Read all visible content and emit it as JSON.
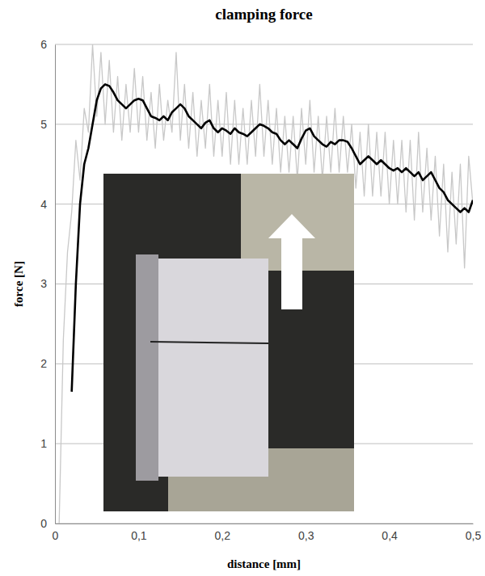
{
  "chart_data": {
    "type": "line",
    "title": "clamping force",
    "x_label": "distance [mm]",
    "y_label": "force [N]",
    "x": [
      0.005,
      0.01,
      0.015,
      0.02,
      0.025,
      0.03,
      0.035,
      0.04,
      0.045,
      0.05,
      0.055,
      0.06,
      0.065,
      0.07,
      0.075,
      0.08,
      0.085,
      0.09,
      0.095,
      0.1,
      0.105,
      0.11,
      0.115,
      0.12,
      0.125,
      0.13,
      0.135,
      0.14,
      0.145,
      0.15,
      0.155,
      0.16,
      0.165,
      0.17,
      0.175,
      0.18,
      0.185,
      0.19,
      0.195,
      0.2,
      0.205,
      0.21,
      0.215,
      0.22,
      0.225,
      0.23,
      0.235,
      0.24,
      0.245,
      0.25,
      0.255,
      0.26,
      0.265,
      0.27,
      0.275,
      0.28,
      0.285,
      0.29,
      0.295,
      0.3,
      0.305,
      0.31,
      0.315,
      0.32,
      0.325,
      0.33,
      0.335,
      0.34,
      0.345,
      0.35,
      0.355,
      0.36,
      0.365,
      0.37,
      0.375,
      0.38,
      0.385,
      0.39,
      0.395,
      0.4,
      0.405,
      0.41,
      0.415,
      0.42,
      0.425,
      0.43,
      0.435,
      0.44,
      0.445,
      0.45,
      0.455,
      0.46,
      0.465,
      0.47,
      0.475,
      0.48,
      0.485,
      0.49,
      0.495,
      0.5
    ],
    "series": [
      {
        "color": "#c8c8c8",
        "values": [
          0,
          2.3,
          3.4,
          3.9,
          4.8,
          4.3,
          5.2,
          4.9,
          6.0,
          5.1,
          5.9,
          5.0,
          5.8,
          4.9,
          5.6,
          4.8,
          5.5,
          4.9,
          5.7,
          4.9,
          5.6,
          4.8,
          5.4,
          4.7,
          5.5,
          4.8,
          5.3,
          4.9,
          5.9,
          4.8,
          5.5,
          4.7,
          5.4,
          4.6,
          5.3,
          4.7,
          5.5,
          4.6,
          5.3,
          4.6,
          5.4,
          4.5,
          5.3,
          4.5,
          5.2,
          4.5,
          5.3,
          4.6,
          5.5,
          4.6,
          5.3,
          4.5,
          5.2,
          4.4,
          5.1,
          4.4,
          5.1,
          4.3,
          5.2,
          4.5,
          5.3,
          4.4,
          5.1,
          4.3,
          5.1,
          4.4,
          5.2,
          4.4,
          5.1,
          4.4,
          5.0,
          4.2,
          4.9,
          4.1,
          5.0,
          4.1,
          4.9,
          4.1,
          4.9,
          4.0,
          4.8,
          4.0,
          4.8,
          3.9,
          4.8,
          3.8,
          4.9,
          3.9,
          4.7,
          3.8,
          4.6,
          3.6,
          4.5,
          3.4,
          4.4,
          3.5,
          4.5,
          3.2,
          4.6,
          4.0
        ]
      },
      {
        "color": "#000000",
        "values": [
          null,
          null,
          null,
          1.65,
          3.0,
          4.0,
          4.5,
          4.7,
          5.0,
          5.3,
          5.45,
          5.5,
          5.48,
          5.4,
          5.3,
          5.25,
          5.2,
          5.25,
          5.3,
          5.32,
          5.3,
          5.2,
          5.1,
          5.08,
          5.05,
          5.1,
          5.05,
          5.15,
          5.2,
          5.25,
          5.2,
          5.1,
          5.05,
          5.0,
          4.95,
          5.02,
          5.05,
          4.95,
          4.9,
          4.95,
          4.92,
          4.88,
          4.95,
          4.9,
          4.88,
          4.85,
          4.9,
          4.95,
          5.0,
          4.98,
          4.95,
          4.9,
          4.88,
          4.8,
          4.75,
          4.8,
          4.75,
          4.7,
          4.82,
          4.92,
          4.95,
          4.85,
          4.8,
          4.75,
          4.72,
          4.78,
          4.75,
          4.8,
          4.8,
          4.78,
          4.7,
          4.6,
          4.5,
          4.55,
          4.6,
          4.55,
          4.5,
          4.55,
          4.5,
          4.45,
          4.42,
          4.45,
          4.4,
          4.45,
          4.4,
          4.35,
          4.4,
          4.3,
          4.35,
          4.4,
          4.3,
          4.2,
          4.15,
          4.05,
          4.0,
          3.95,
          3.9,
          3.95,
          3.9,
          4.05
        ]
      }
    ],
    "xlim": [
      0,
      0.5
    ],
    "xticks": [
      0,
      {
        "value": 0.1,
        "label": "0,1"
      },
      {
        "value": 0.2,
        "label": "0,2"
      },
      {
        "value": 0.3,
        "label": "0,3"
      },
      {
        "value": 0.4,
        "label": "0,4"
      },
      {
        "value": 0.5,
        "label": "0,5"
      }
    ],
    "ylim": [
      0,
      6
    ],
    "yticks": [
      0,
      1,
      2,
      3,
      4,
      5,
      6
    ],
    "grid": true
  }
}
